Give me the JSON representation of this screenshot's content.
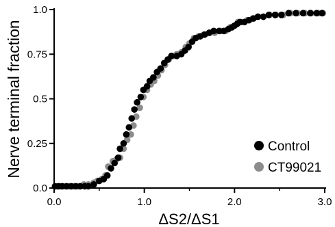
{
  "chart_data": {
    "type": "scatter",
    "xlabel": "ΔS2/ΔS1",
    "ylabel": "Nerve terminal fraction",
    "xlim": [
      0.0,
      3.0
    ],
    "ylim": [
      0.0,
      1.0
    ],
    "x_ticks": [
      {
        "v": 0.0,
        "label": "0.0"
      },
      {
        "v": 1.0,
        "label": "1.0"
      },
      {
        "v": 2.0,
        "label": "2.0"
      },
      {
        "v": 3.0,
        "label": "3.0"
      }
    ],
    "x_minor_ticks": [
      0.5,
      1.5,
      2.5
    ],
    "y_ticks": [
      {
        "v": 0.0,
        "label": "0.0"
      },
      {
        "v": 0.25,
        "label": "0.25"
      },
      {
        "v": 0.5,
        "label": "0.5"
      },
      {
        "v": 0.75,
        "label": "0.75"
      },
      {
        "v": 1.0,
        "label": "1.0"
      }
    ],
    "grid": false,
    "legend_position": "bottom-right",
    "series": [
      {
        "name": "CT99021",
        "color": "#8c8c8c",
        "points": [
          [
            0.03,
            0.01
          ],
          [
            0.08,
            0.01
          ],
          [
            0.12,
            0.01
          ],
          [
            0.17,
            0.01
          ],
          [
            0.22,
            0.01
          ],
          [
            0.27,
            0.01
          ],
          [
            0.33,
            0.02
          ],
          [
            0.38,
            0.02
          ],
          [
            0.44,
            0.03
          ],
          [
            0.48,
            0.04
          ],
          [
            0.53,
            0.05
          ],
          [
            0.57,
            0.07
          ],
          [
            0.6,
            0.12
          ],
          [
            0.65,
            0.15
          ],
          [
            0.69,
            0.16
          ],
          [
            0.73,
            0.17
          ],
          [
            0.77,
            0.22
          ],
          [
            0.81,
            0.27
          ],
          [
            0.85,
            0.3
          ],
          [
            0.88,
            0.35
          ],
          [
            0.91,
            0.4
          ],
          [
            0.95,
            0.45
          ],
          [
            0.99,
            0.51
          ],
          [
            1.03,
            0.55
          ],
          [
            1.07,
            0.58
          ],
          [
            1.11,
            0.6
          ],
          [
            1.15,
            0.63
          ],
          [
            1.19,
            0.66
          ],
          [
            1.23,
            0.69
          ],
          [
            1.27,
            0.72
          ],
          [
            1.32,
            0.74
          ],
          [
            1.36,
            0.75
          ],
          [
            1.41,
            0.76
          ],
          [
            1.46,
            0.79
          ],
          [
            1.5,
            0.81
          ],
          [
            1.55,
            0.84
          ],
          [
            1.6,
            0.85
          ],
          [
            1.66,
            0.86
          ],
          [
            1.72,
            0.87
          ],
          [
            1.78,
            0.87
          ],
          [
            1.84,
            0.88
          ],
          [
            1.9,
            0.88
          ],
          [
            1.95,
            0.9
          ],
          [
            2.0,
            0.91
          ],
          [
            2.04,
            0.93
          ],
          [
            2.08,
            0.93
          ],
          [
            2.14,
            0.94
          ],
          [
            2.2,
            0.95
          ],
          [
            2.26,
            0.96
          ],
          [
            2.32,
            0.96
          ],
          [
            2.39,
            0.97
          ],
          [
            2.46,
            0.97
          ],
          [
            2.54,
            0.97
          ],
          [
            2.62,
            0.98
          ],
          [
            2.7,
            0.98
          ],
          [
            2.78,
            0.98
          ],
          [
            2.85,
            0.98
          ],
          [
            2.93,
            0.98
          ],
          [
            2.98,
            0.98
          ]
        ]
      },
      {
        "name": "Control",
        "color": "#000000",
        "points": [
          [
            0.01,
            0.01
          ],
          [
            0.05,
            0.01
          ],
          [
            0.09,
            0.01
          ],
          [
            0.14,
            0.01
          ],
          [
            0.19,
            0.01
          ],
          [
            0.24,
            0.01
          ],
          [
            0.29,
            0.01
          ],
          [
            0.34,
            0.01
          ],
          [
            0.38,
            0.01
          ],
          [
            0.44,
            0.02
          ],
          [
            0.5,
            0.04
          ],
          [
            0.55,
            0.05
          ],
          [
            0.59,
            0.07
          ],
          [
            0.63,
            0.11
          ],
          [
            0.67,
            0.14
          ],
          [
            0.71,
            0.17
          ],
          [
            0.73,
            0.22
          ],
          [
            0.77,
            0.25
          ],
          [
            0.8,
            0.3
          ],
          [
            0.83,
            0.34
          ],
          [
            0.86,
            0.39
          ],
          [
            0.89,
            0.44
          ],
          [
            0.92,
            0.48
          ],
          [
            0.96,
            0.51
          ],
          [
            0.99,
            0.55
          ],
          [
            1.03,
            0.57
          ],
          [
            1.06,
            0.6
          ],
          [
            1.1,
            0.62
          ],
          [
            1.14,
            0.65
          ],
          [
            1.18,
            0.67
          ],
          [
            1.22,
            0.7
          ],
          [
            1.26,
            0.72
          ],
          [
            1.3,
            0.74
          ],
          [
            1.36,
            0.74
          ],
          [
            1.41,
            0.75
          ],
          [
            1.45,
            0.77
          ],
          [
            1.49,
            0.79
          ],
          [
            1.53,
            0.82
          ],
          [
            1.57,
            0.84
          ],
          [
            1.62,
            0.85
          ],
          [
            1.67,
            0.86
          ],
          [
            1.72,
            0.87
          ],
          [
            1.77,
            0.88
          ],
          [
            1.83,
            0.88
          ],
          [
            1.88,
            0.88
          ],
          [
            1.93,
            0.89
          ],
          [
            1.97,
            0.9
          ],
          [
            2.0,
            0.91
          ],
          [
            2.03,
            0.92
          ],
          [
            2.06,
            0.93
          ],
          [
            2.11,
            0.93
          ],
          [
            2.16,
            0.94
          ],
          [
            2.21,
            0.95
          ],
          [
            2.26,
            0.96
          ],
          [
            2.32,
            0.96
          ],
          [
            2.38,
            0.97
          ],
          [
            2.45,
            0.97
          ],
          [
            2.52,
            0.97
          ],
          [
            2.6,
            0.98
          ],
          [
            2.68,
            0.98
          ],
          [
            2.76,
            0.98
          ],
          [
            2.84,
            0.98
          ],
          [
            2.91,
            0.98
          ],
          [
            2.97,
            0.98
          ]
        ]
      }
    ]
  }
}
